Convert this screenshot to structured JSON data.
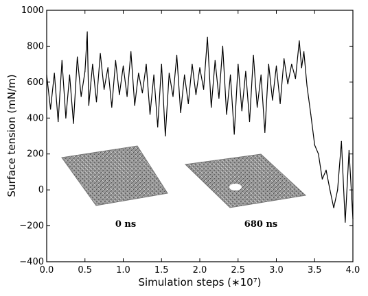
{
  "chart_data": {
    "type": "line",
    "xlabel": "Simulation steps (∗10⁷)",
    "ylabel": "Surface tension (mN/m)",
    "xlim": [
      0.0,
      4.0
    ],
    "ylim": [
      -400,
      1000
    ],
    "x_ticks": [
      "0.0",
      "0.5",
      "1.0",
      "1.5",
      "2.0",
      "2.5",
      "3.0",
      "3.5",
      "4.0"
    ],
    "y_ticks": [
      "−400",
      "−200",
      "0",
      "200",
      "400",
      "600",
      "800",
      "1000"
    ],
    "grid": false,
    "line_color": "#000000",
    "series": [
      {
        "x": [
          0.0,
          0.05,
          0.1,
          0.15,
          0.2,
          0.25,
          0.3,
          0.35,
          0.4,
          0.45,
          0.5,
          0.53,
          0.55,
          0.6,
          0.65,
          0.7,
          0.75,
          0.8,
          0.85,
          0.9,
          0.95,
          1.0,
          1.05,
          1.1,
          1.15,
          1.2,
          1.25,
          1.3,
          1.35,
          1.4,
          1.45,
          1.5,
          1.55,
          1.6,
          1.65,
          1.7,
          1.75,
          1.8,
          1.85,
          1.9,
          1.95,
          2.0,
          2.05,
          2.1,
          2.15,
          2.2,
          2.25,
          2.3,
          2.35,
          2.4,
          2.45,
          2.5,
          2.55,
          2.6,
          2.65,
          2.7,
          2.75,
          2.8,
          2.85,
          2.9,
          2.95,
          3.0,
          3.05,
          3.1,
          3.15,
          3.2,
          3.25,
          3.3,
          3.33,
          3.36,
          3.4,
          3.45,
          3.5,
          3.55,
          3.6,
          3.65,
          3.7,
          3.75,
          3.8,
          3.85,
          3.9,
          3.95,
          4.0
        ],
        "values": [
          640,
          450,
          650,
          380,
          720,
          400,
          640,
          370,
          740,
          520,
          660,
          880,
          470,
          700,
          490,
          760,
          560,
          680,
          460,
          720,
          530,
          690,
          520,
          770,
          470,
          650,
          540,
          700,
          420,
          640,
          350,
          700,
          300,
          650,
          520,
          750,
          430,
          640,
          480,
          700,
          530,
          680,
          560,
          850,
          460,
          720,
          510,
          800,
          420,
          640,
          310,
          700,
          440,
          660,
          380,
          750,
          460,
          640,
          320,
          700,
          500,
          690,
          480,
          730,
          590,
          700,
          620,
          830,
          680,
          770,
          580,
          420,
          250,
          200,
          60,
          110,
          0,
          -100,
          0,
          270,
          -180,
          220,
          -160
        ]
      }
    ],
    "annotations": [
      "0 ns",
      "680 ns"
    ]
  }
}
